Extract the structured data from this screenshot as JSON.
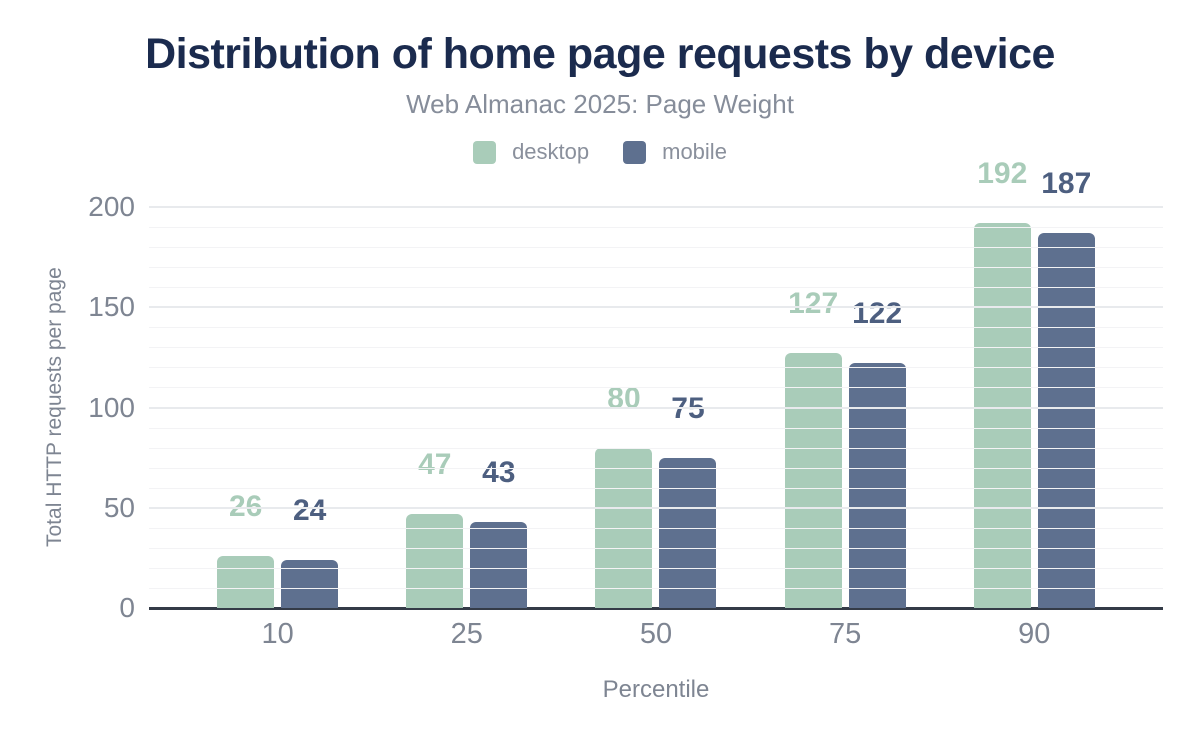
{
  "header": {
    "title": "Distribution of home page requests by device",
    "subtitle": "Web Almanac 2025: Page Weight"
  },
  "chart_data": {
    "type": "bar",
    "title": "Distribution of home page requests by device",
    "subtitle": "Web Almanac 2025: Page Weight",
    "categories": [
      "10",
      "25",
      "50",
      "75",
      "90"
    ],
    "series": [
      {
        "name": "desktop",
        "color": "#a9ccb9",
        "label_color": "#a9ccb9",
        "values": [
          26,
          47,
          80,
          127,
          192
        ]
      },
      {
        "name": "mobile",
        "color": "#5e708f",
        "label_color": "#4d5f80",
        "values": [
          24,
          43,
          75,
          122,
          187
        ]
      }
    ],
    "xlabel": "Percentile",
    "ylabel": "Total HTTP requests per page",
    "ylim": [
      0,
      200
    ],
    "yticks": [
      0,
      50,
      100,
      150,
      200
    ],
    "minor_grid_step": 10,
    "major_grid_step": 50,
    "grid": "horizontal",
    "legend_position": "top",
    "data_labels": true
  },
  "colors": {
    "title": "#1b2b4e",
    "subtitle": "#868d9a",
    "axis_text": "#7e8592",
    "baseline": "#343b47",
    "minor_grid": "#f3f3f5",
    "major_grid": "#e8eaed",
    "background": "#ffffff"
  }
}
